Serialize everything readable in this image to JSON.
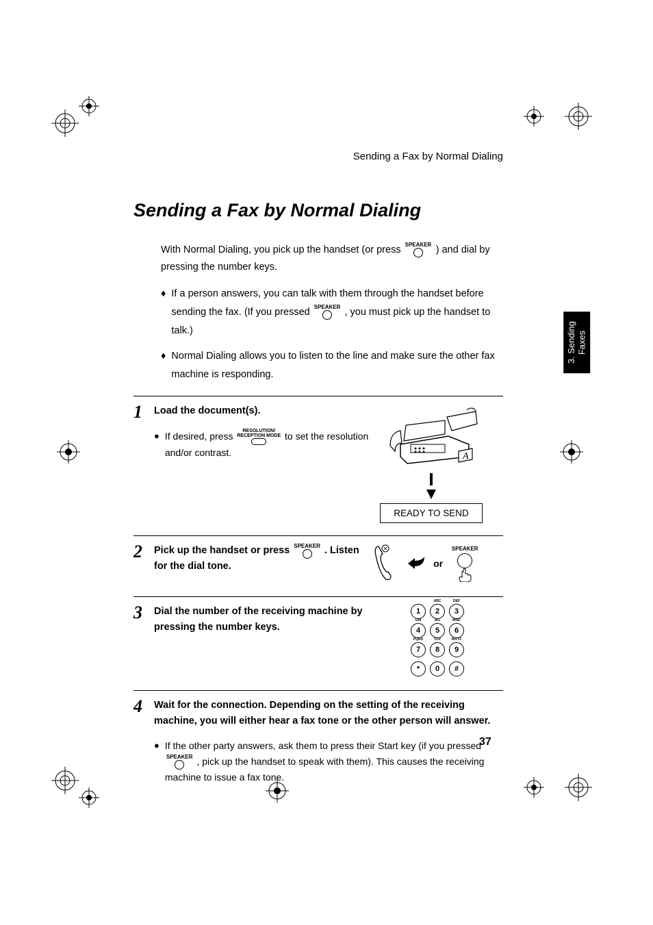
{
  "running_head": "Sending a Fax by Normal Dialing",
  "title": "Sending a Fax by Normal Dialing",
  "intro_a": "With Normal Dialing, you pick up the handset (or press ",
  "intro_b": " ) and dial by pressing the number keys.",
  "speaker_label": "SPEAKER",
  "resmode_label_1": "RESOLUTION/",
  "resmode_label_2": "RECEPTION MODE",
  "bullets": [
    {
      "pre": "If a person answers, you can talk with them through the handset before sending the fax. (If you pressed ",
      "post": ", you must pick up the handset to talk.)"
    },
    {
      "pre": "Normal Dialing allows you to listen to the line and make sure the other fax machine is responding.",
      "post": ""
    }
  ],
  "steps": {
    "s1": {
      "num": "1",
      "head": "Load the document(s).",
      "sub_a": "If desired, press ",
      "sub_b": " to set the resolution and/or contrast.",
      "display": "READY TO SEND"
    },
    "s2": {
      "num": "2",
      "head_a": "Pick up the handset or press ",
      "head_b": ". Listen for the dial tone.",
      "or": "or"
    },
    "s3": {
      "num": "3",
      "head": "Dial the number of the receiving machine by pressing the number keys.",
      "keys": [
        {
          "d": "1",
          "l": ""
        },
        {
          "d": "2",
          "l": "ABC"
        },
        {
          "d": "3",
          "l": "DEF"
        },
        {
          "d": "4",
          "l": "GHI"
        },
        {
          "d": "5",
          "l": "JKL"
        },
        {
          "d": "6",
          "l": "MNO"
        },
        {
          "d": "7",
          "l": "PQRS"
        },
        {
          "d": "8",
          "l": "TUV"
        },
        {
          "d": "9",
          "l": "WXYZ"
        },
        {
          "d": "*",
          "l": ""
        },
        {
          "d": "0",
          "l": ""
        },
        {
          "d": "#",
          "l": ""
        }
      ]
    },
    "s4": {
      "num": "4",
      "head": "Wait for the connection. Depending on the setting of the receiving machine, you will either hear a fax tone or the other person will answer.",
      "sub_a": "If the other party answers, ask them to press their Start key (if you pressed ",
      "sub_b": ", pick up the handset to speak with them). This causes the receiving machine to issue a fax tone."
    }
  },
  "side_tab": "3. Sending\nFaxes",
  "page_number": "37",
  "colors": {
    "fg": "#000000",
    "bg": "#ffffff"
  }
}
